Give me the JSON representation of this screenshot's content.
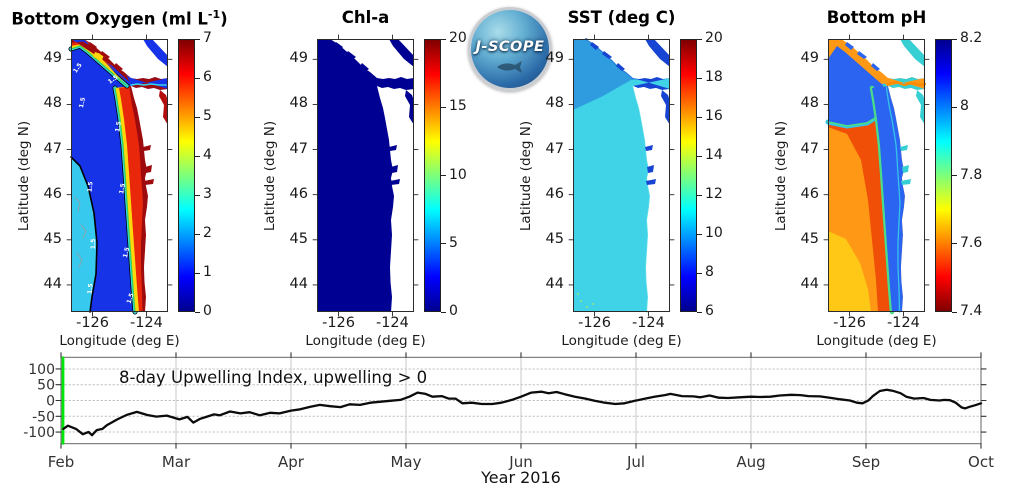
{
  "logo": {
    "text": "J-SCOPE"
  },
  "colormap_jet": [
    [
      0,
      "#00008f"
    ],
    [
      0.125,
      "#0000ff"
    ],
    [
      0.375,
      "#00ffff"
    ],
    [
      0.5,
      "#7dff7a"
    ],
    [
      0.625,
      "#ffff00"
    ],
    [
      0.875,
      "#ff0000"
    ],
    [
      1,
      "#800000"
    ]
  ],
  "chart_data": [
    {
      "id": "bottom_oxygen",
      "type": "heatmap",
      "title_text": "Bottom Oxygen (ml L-1)",
      "title_prefix": "Bottom Oxygen (ml L",
      "title_sup": "-1",
      "title_suffix": ")",
      "xlabel": "Longitude (deg E)",
      "ylabel": "Latitude (deg N)",
      "xlim": [
        -126.8,
        -123.2
      ],
      "ylim": [
        43.4,
        49.45
      ],
      "xticks": [
        -126,
        -124
      ],
      "yticks": [
        44,
        45,
        46,
        47,
        48,
        49
      ],
      "colorbar": {
        "min": 0,
        "max": 7,
        "ticks": [
          0,
          1,
          2,
          3,
          4,
          5,
          6,
          7
        ],
        "reversed": false
      },
      "contour_label": "1.5",
      "contour_value_ml_per_l": 1.5,
      "region_values_ml_per_l": {
        "offshore_southwest": 2.5,
        "shelf_hypoxic_band": 1,
        "nearshore_coastal": 6,
        "strait_of_juan_de_fuca": 7,
        "vancouver_island_coast": 6.5
      },
      "colors": {
        "offshore_low": "#1733e8",
        "offshore_mid": "#38c9ee",
        "fringe_yellow": "#ffd60a",
        "fringe_green": "#39d353",
        "fringe_cyan": "#35d5e8",
        "coastal_red": "#e8270b",
        "coastal_darkred": "#9e0b0f",
        "strait": "#9e0b0f",
        "georgia_strait": "#1733e8",
        "puget": "#b30d0d",
        "contour": "#000000",
        "land": "#ffffff"
      }
    },
    {
      "id": "chl_a",
      "type": "heatmap",
      "title_text": "Chl-a",
      "xlabel": "Longitude (deg E)",
      "ylabel": "Latitude (deg N)",
      "xlim": [
        -126.8,
        -123.2
      ],
      "ylim": [
        43.4,
        49.45
      ],
      "xticks": [
        -126,
        -124
      ],
      "yticks": [
        44,
        45,
        46,
        47,
        48,
        49
      ],
      "colorbar": {
        "min": 0,
        "max": 20,
        "ticks": [
          0,
          5,
          10,
          15,
          20
        ],
        "reversed": false
      },
      "region_values": {
        "entire_domain": "~0 (uniformly low)"
      },
      "colors": {
        "water": "#000092",
        "land": "#ffffff"
      }
    },
    {
      "id": "sst",
      "type": "heatmap",
      "title_text": "SST (deg C)",
      "xlabel": "Longitude (deg E)",
      "ylabel": "Latitude (deg N)",
      "xlim": [
        -126.8,
        -123.2
      ],
      "ylim": [
        43.4,
        49.45
      ],
      "xticks": [
        -126,
        -124
      ],
      "yticks": [
        44,
        45,
        46,
        47,
        48,
        49
      ],
      "colorbar": {
        "min": 6,
        "max": 20,
        "ticks": [
          6,
          8,
          10,
          12,
          14,
          16,
          18,
          20
        ],
        "reversed": false
      },
      "region_values_deg_c": {
        "offshore": 10.5,
        "northern_area": 9.5,
        "strait_of_juan_de_fuca": 7.5,
        "puget_sound": 7.5
      },
      "colors": {
        "offshore": "#40d2e6",
        "north": "#2f9ce0",
        "inland": "#1744d2",
        "dots": "#b5e86a",
        "land": "#ffffff"
      }
    },
    {
      "id": "bottom_ph",
      "type": "heatmap",
      "title_text": "Bottom pH",
      "xlabel": "Longitude (deg E)",
      "ylabel": "Latitude (deg N)",
      "xlim": [
        -126.8,
        -123.2
      ],
      "ylim": [
        43.4,
        49.45
      ],
      "xticks": [
        -126,
        -124
      ],
      "yticks": [
        44,
        45,
        46,
        47,
        48,
        49
      ],
      "colorbar": {
        "min": 7.4,
        "max": 8.2,
        "ticks": [
          7.4,
          7.6,
          7.8,
          8,
          8.2
        ],
        "reversed": true
      },
      "region_values_ph": {
        "southwest_offshore": 7.7,
        "offshore": 7.62,
        "mid_shelf": 7.5,
        "nearshore_coastal": 8.05,
        "strait_of_juan_de_fuca": 7.9
      },
      "colors": {
        "offshore_orange": "#ff9814",
        "southwest_yellow": "#ffc716",
        "shelf_red": "#f04f08",
        "coastal_blue": "#2a64f0",
        "fringe_green": "#49dd8a",
        "fringe_cyan": "#35c3ea",
        "strait_cyan": "#35cfd4",
        "strait_orange_line": "#ff8a00",
        "land": "#ffffff"
      }
    },
    {
      "id": "upwelling_index",
      "type": "line",
      "title": "8-day Upwelling Index, upwelling > 0",
      "xlabel": "Year 2016",
      "x_tick_labels": [
        "Feb",
        "Mar",
        "Apr",
        "May",
        "Jun",
        "Jul",
        "Aug",
        "Sep",
        "Oct"
      ],
      "yticks": [
        -100,
        -50,
        0,
        50,
        100
      ],
      "ylim": [
        -137,
        137
      ],
      "xlim_month_index": [
        0,
        8
      ],
      "x_unit": "month index (0 = Feb, 8 = Oct)",
      "line_color": "#0c0c0c",
      "event_marker": {
        "x_month": 0,
        "color": "#00e60a"
      },
      "x": [
        0.02,
        0.06,
        0.13,
        0.19,
        0.24,
        0.27,
        0.31,
        0.36,
        0.4,
        0.49,
        0.57,
        0.66,
        0.75,
        0.83,
        0.92,
        1.03,
        1.1,
        1.15,
        1.21,
        1.27,
        1.33,
        1.38,
        1.47,
        1.56,
        1.64,
        1.73,
        1.82,
        1.9,
        2.0,
        2.08,
        2.17,
        2.25,
        2.34,
        2.43,
        2.51,
        2.6,
        2.69,
        2.77,
        2.86,
        2.95,
        3.03,
        3.1,
        3.17,
        3.23,
        3.31,
        3.37,
        3.43,
        3.49,
        3.57,
        3.66,
        3.75,
        3.83,
        3.92,
        4.0,
        4.09,
        4.18,
        4.24,
        4.31,
        4.38,
        4.47,
        4.56,
        4.64,
        4.73,
        4.82,
        4.9,
        4.99,
        5.08,
        5.16,
        5.25,
        5.3,
        5.4,
        5.5,
        5.56,
        5.64,
        5.72,
        5.8,
        5.9,
        6.0,
        6.08,
        6.17,
        6.25,
        6.35,
        6.43,
        6.5,
        6.6,
        6.7,
        6.77,
        6.86,
        6.92,
        6.97,
        7.02,
        7.06,
        7.12,
        7.18,
        7.23,
        7.3,
        7.35,
        7.42,
        7.5,
        7.56,
        7.64,
        7.68,
        7.73,
        7.78,
        7.83,
        7.86,
        7.9,
        7.95,
        8.0
      ],
      "y": [
        -90,
        -80,
        -90,
        -107,
        -100,
        -110,
        -94,
        -90,
        -78,
        -60,
        -46,
        -36,
        -46,
        -51,
        -48,
        -60,
        -52,
        -70,
        -58,
        -51,
        -44,
        -47,
        -35,
        -41,
        -37,
        -47,
        -39,
        -41,
        -32,
        -28,
        -20,
        -14,
        -18,
        -21,
        -12,
        -14,
        -7,
        -4,
        -1,
        2,
        12,
        25,
        21,
        12,
        14,
        6,
        6,
        -9,
        -7,
        -11,
        -11,
        -7,
        2,
        12,
        25,
        28,
        23,
        27,
        20,
        12,
        6,
        -1,
        -7,
        -11,
        -9,
        -1,
        6,
        12,
        17,
        21,
        14,
        13,
        10,
        16,
        9,
        8,
        10,
        12,
        11,
        12,
        16,
        18,
        17,
        14,
        13,
        8,
        4,
        0,
        -7,
        -9,
        0,
        14,
        30,
        34,
        31,
        23,
        12,
        6,
        8,
        2,
        0,
        2,
        1,
        -7,
        -22,
        -25,
        -20,
        -15,
        -9
      ]
    }
  ]
}
